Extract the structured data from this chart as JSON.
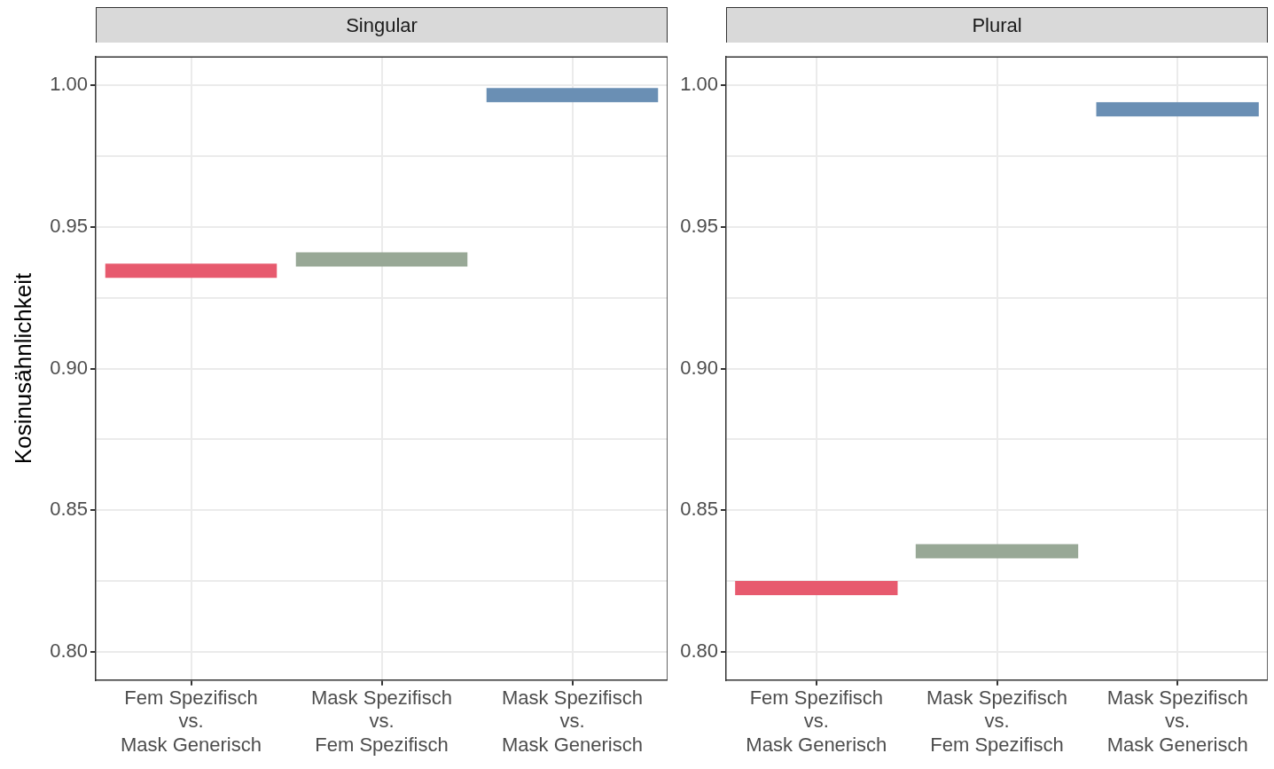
{
  "chart_data": [
    {
      "type": "bar",
      "title": "Singular",
      "ylabel": "Kosinusähnlichkeit",
      "categories": [
        "Fem Spezifisch\nvs.\nMask Generisch",
        "Mask Spezifisch\nvs.\nFem Spezifisch",
        "Mask Spezifisch\nvs.\nMask Generisch"
      ],
      "values": [
        0.005,
        0.005,
        0.005
      ],
      "base": [
        0.932,
        0.936,
        0.994
      ],
      "colors": [
        "#e75a6e",
        "#98a896",
        "#6a8fb4"
      ],
      "ylim": [
        0.79,
        1.01
      ],
      "yticks": [
        {
          "value": 0.8,
          "label": "0.80"
        },
        {
          "value": 0.825,
          "label": null
        },
        {
          "value": 0.85,
          "label": "0.85"
        },
        {
          "value": 0.875,
          "label": null
        },
        {
          "value": 0.9,
          "label": "0.90"
        },
        {
          "value": 0.925,
          "label": null
        },
        {
          "value": 0.95,
          "label": "0.95"
        },
        {
          "value": 0.975,
          "label": null
        },
        {
          "value": 1,
          "label": "1.00"
        }
      ],
      "grid": true,
      "legend": false
    },
    {
      "type": "bar",
      "title": "Plural",
      "categories": [
        "Fem Spezifisch\nvs.\nMask Generisch",
        "Mask Spezifisch\nvs.\nFem Spezifisch",
        "Mask Spezifisch\nvs.\nMask Generisch"
      ],
      "values": [
        0.005,
        0.005,
        0.005
      ],
      "base": [
        0.82,
        0.833,
        0.989
      ],
      "colors": [
        "#e75a6e",
        "#98a896",
        "#6a8fb4"
      ],
      "ylim": [
        0.79,
        1.01
      ],
      "yticks": [
        {
          "value": 0.8,
          "label": "0.80"
        },
        {
          "value": 0.825,
          "label": null
        },
        {
          "value": 0.85,
          "label": "0.85"
        },
        {
          "value": 0.875,
          "label": null
        },
        {
          "value": 0.9,
          "label": "0.90"
        },
        {
          "value": 0.925,
          "label": null
        },
        {
          "value": 0.95,
          "label": "0.95"
        },
        {
          "value": 0.975,
          "label": null
        },
        {
          "value": 1,
          "label": "1.00"
        }
      ],
      "grid": true,
      "legend": false
    }
  ]
}
